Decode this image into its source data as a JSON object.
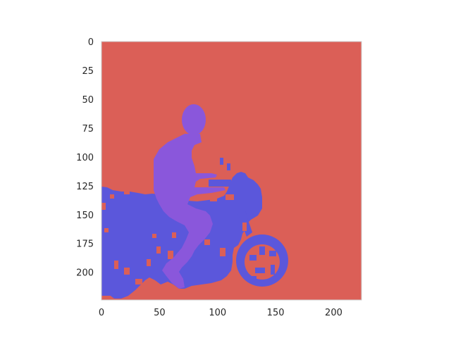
{
  "chart_data": {
    "type": "heatmap",
    "title": "",
    "xlabel": "",
    "ylabel": "",
    "xlim": [
      0,
      224
    ],
    "ylim": [
      224,
      0
    ],
    "grid": false,
    "x_ticks": [
      {
        "value": 0,
        "label": "0"
      },
      {
        "value": 50,
        "label": "50"
      },
      {
        "value": 100,
        "label": "100"
      },
      {
        "value": 150,
        "label": "150"
      },
      {
        "value": 200,
        "label": "200"
      }
    ],
    "y_ticks": [
      {
        "value": 0,
        "label": "0"
      },
      {
        "value": 25,
        "label": "25"
      },
      {
        "value": 50,
        "label": "50"
      },
      {
        "value": 75,
        "label": "75"
      },
      {
        "value": 100,
        "label": "100"
      },
      {
        "value": 125,
        "label": "125"
      },
      {
        "value": 150,
        "label": "150"
      },
      {
        "value": 175,
        "label": "175"
      },
      {
        "value": 200,
        "label": "200"
      }
    ],
    "colors": {
      "background": "#db5f57",
      "motorbike": "#5b57db",
      "person": "#8a57db",
      "frame": "#cccccc"
    }
  }
}
